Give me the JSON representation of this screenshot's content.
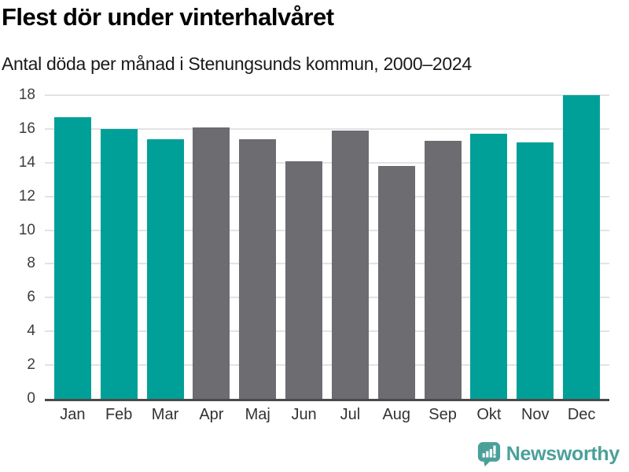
{
  "header": {
    "title": "Flest dör under vinterhalvåret",
    "subtitle": "Antal döda per månad i Stenungsunds kommun, 2000–2024"
  },
  "chart_data": {
    "type": "bar",
    "title": "Flest dör under vinterhalvåret",
    "subtitle": "Antal döda per månad i Stenungsunds kommun, 2000–2024",
    "categories": [
      "Jan",
      "Feb",
      "Mar",
      "Apr",
      "Maj",
      "Jun",
      "Jul",
      "Aug",
      "Sep",
      "Okt",
      "Nov",
      "Dec"
    ],
    "values": [
      16.7,
      16.0,
      15.4,
      16.1,
      15.4,
      14.1,
      15.9,
      13.8,
      15.3,
      15.7,
      15.2,
      18.0
    ],
    "bar_colors": [
      "teal",
      "teal",
      "teal",
      "gray",
      "gray",
      "gray",
      "gray",
      "gray",
      "gray",
      "teal",
      "teal",
      "teal"
    ],
    "xlabel": "",
    "ylabel": "",
    "ylim": [
      0,
      18
    ],
    "yticks": [
      0,
      2,
      4,
      6,
      8,
      10,
      12,
      14,
      16,
      18
    ],
    "grid": true,
    "legend": false,
    "colors": {
      "highlight_teal": "#00a099",
      "muted_gray": "#6c6c71",
      "gridline": "#e3e3e3",
      "axis_line": "#4a4a4a"
    }
  },
  "footer": {
    "brand": "Newsworthy",
    "brand_color": "#4ba09a"
  }
}
